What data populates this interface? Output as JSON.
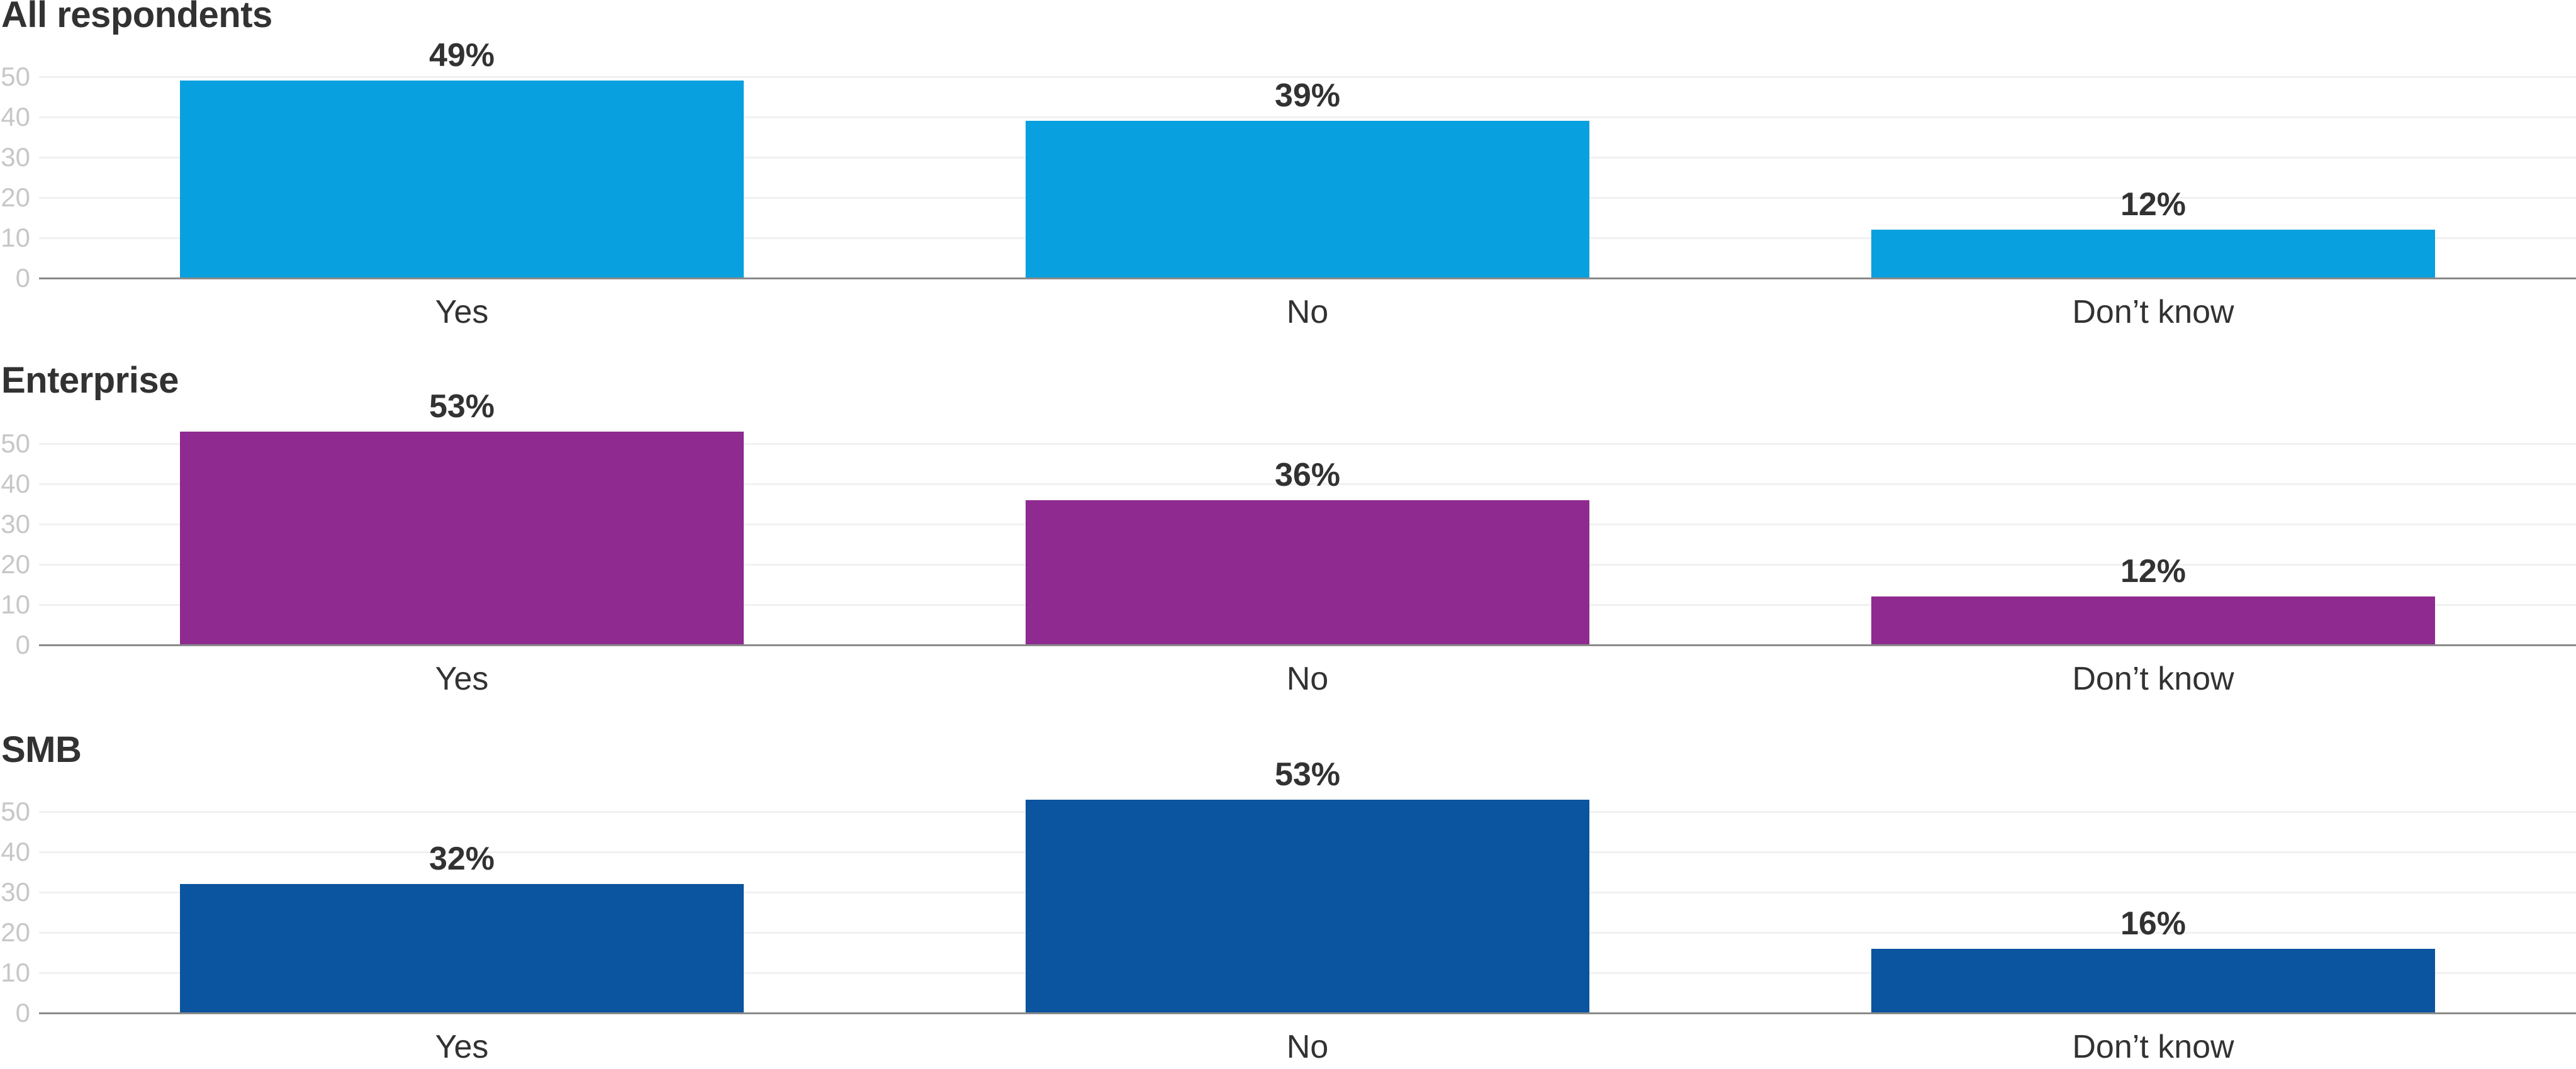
{
  "chart_data": [
    {
      "type": "bar",
      "title": "All respondents",
      "categories": [
        "Yes",
        "No",
        "Don’t know"
      ],
      "values": [
        49,
        39,
        12
      ],
      "value_labels": [
        "49%",
        "39%",
        "12%"
      ],
      "bar_color": "#08a0de",
      "ylim": [
        0,
        50
      ],
      "yticks": [
        0,
        10,
        20,
        30,
        40,
        50
      ],
      "grid": "horizontal",
      "legend": "none"
    },
    {
      "type": "bar",
      "title": "Enterprise",
      "categories": [
        "Yes",
        "No",
        "Don’t know"
      ],
      "values": [
        53,
        36,
        12
      ],
      "value_labels": [
        "53%",
        "36%",
        "12%"
      ],
      "bar_color": "#8e2a90",
      "ylim": [
        0,
        50
      ],
      "yticks": [
        0,
        10,
        20,
        30,
        40,
        50
      ],
      "grid": "horizontal",
      "legend": "none"
    },
    {
      "type": "bar",
      "title": "SMB",
      "categories": [
        "Yes",
        "No",
        "Don’t know"
      ],
      "values": [
        32,
        53,
        16
      ],
      "value_labels": [
        "32%",
        "53%",
        "16%"
      ],
      "bar_color": "#0b549f",
      "ylim": [
        0,
        50
      ],
      "yticks": [
        0,
        10,
        20,
        30,
        40,
        50
      ],
      "grid": "horizontal",
      "legend": "none"
    }
  ],
  "colors": {
    "title_text": "#323232",
    "label_text": "#323232",
    "ytick_text": "#c7c7c7",
    "gridline": "#f1f1f1",
    "axis_line": "#8a8a8a",
    "background": "#ffffff",
    "bar_all_respondents": "#08a0de",
    "bar_enterprise": "#8e2a90",
    "bar_smb": "#0b549f"
  }
}
